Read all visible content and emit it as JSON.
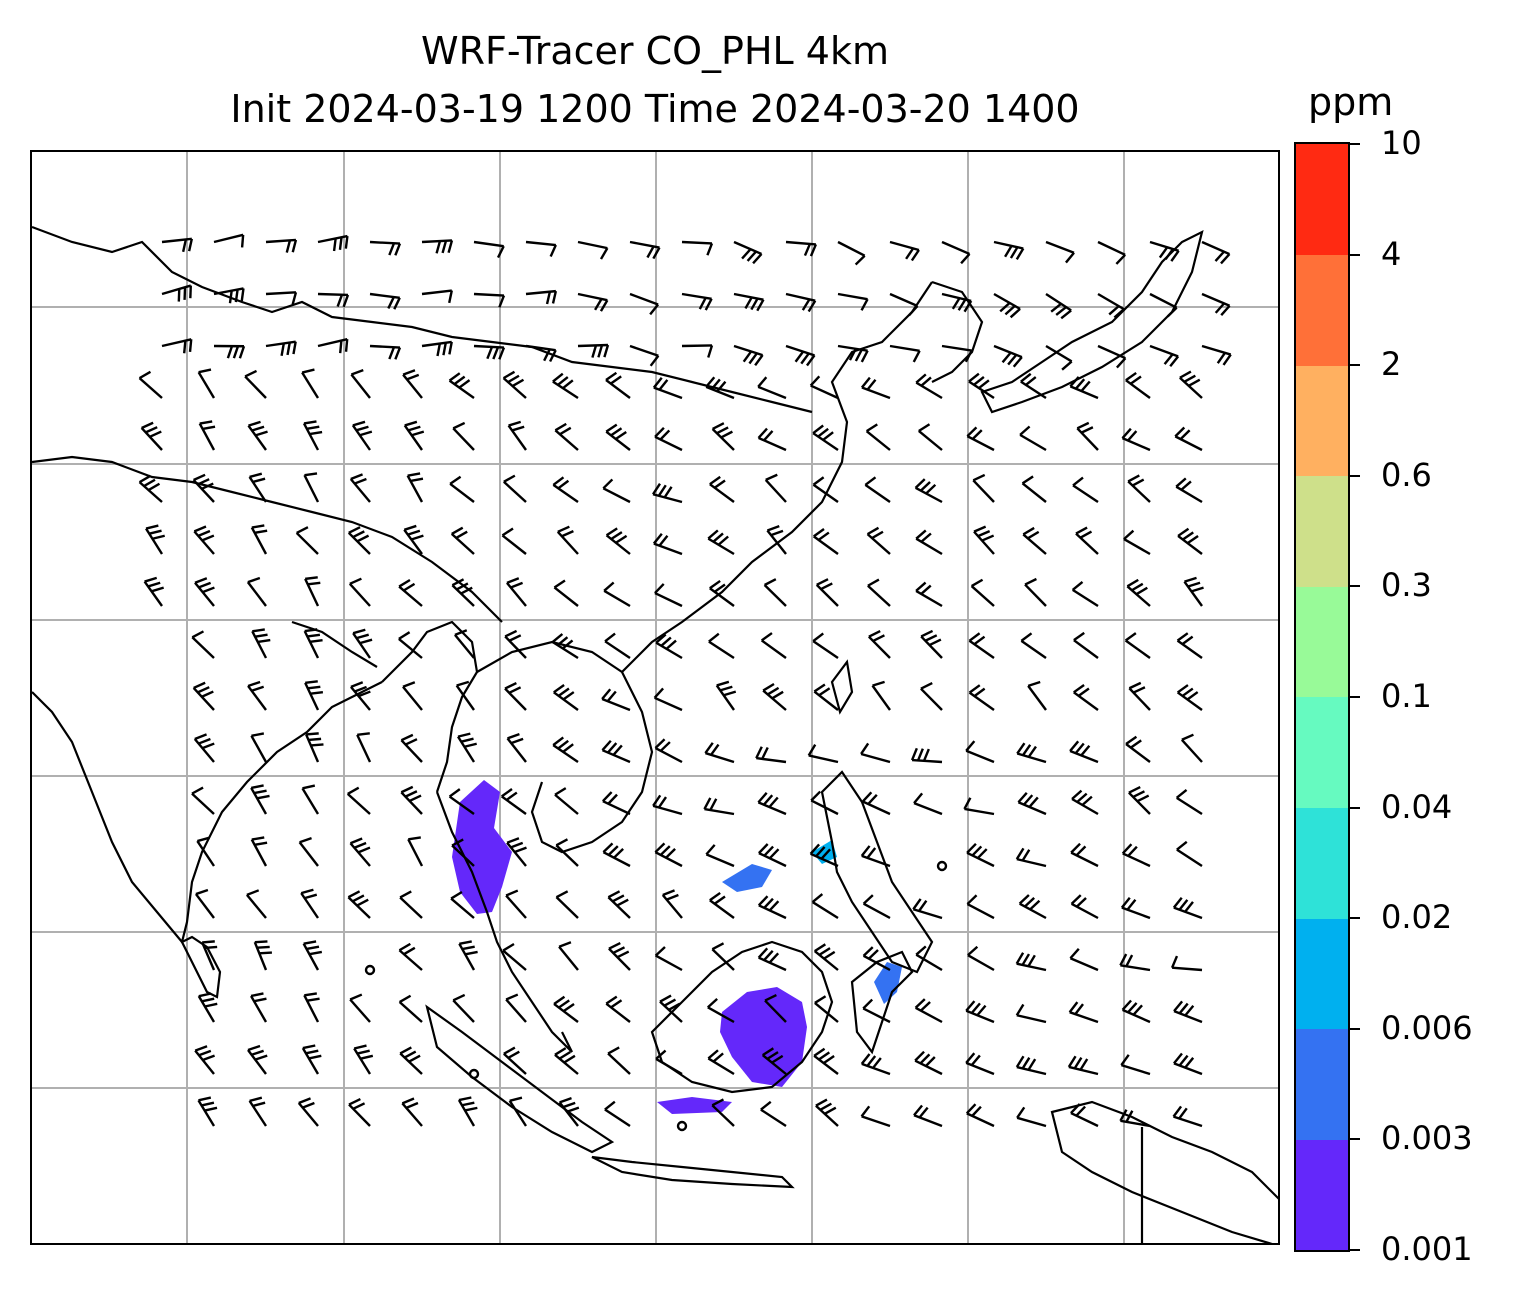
{
  "title": {
    "line1": "WRF-Tracer CO_PHL 4km",
    "line2": "Init 2024-03-19 1200 Time 2024-03-20 1400"
  },
  "colorbar": {
    "unit": "ppm",
    "levels": [
      "0.001",
      "0.003",
      "0.006",
      "0.02",
      "0.04",
      "0.1",
      "0.3",
      "0.6",
      "2",
      "4",
      "10"
    ],
    "colors": [
      "#6428fa",
      "#3472f2",
      "#00b0ef",
      "#2ee2d8",
      "#66fac0",
      "#98fa98",
      "#cee08a",
      "#ffb060",
      "#ff7038",
      "#ff2a12"
    ]
  },
  "map": {
    "gridlines": true,
    "grid_color": "#b0b0b0",
    "coastline_color": "#000000",
    "tracer_fill_color": "#6428fa",
    "layers": [
      "coastlines",
      "wind-barbs",
      "tracer-concentration"
    ]
  }
}
